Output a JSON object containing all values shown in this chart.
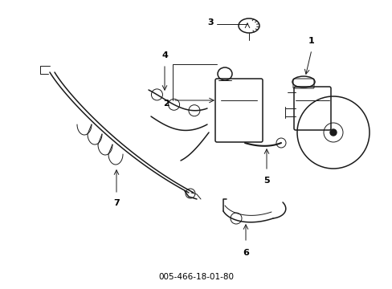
{
  "title": "005-466-18-01-80",
  "bg_color": "#ffffff",
  "line_color": "#1a1a1a",
  "label_color": "#000000",
  "figsize": [
    4.89,
    3.6
  ],
  "dpi": 100,
  "xlim": [
    0,
    489
  ],
  "ylim": [
    0,
    360
  ]
}
